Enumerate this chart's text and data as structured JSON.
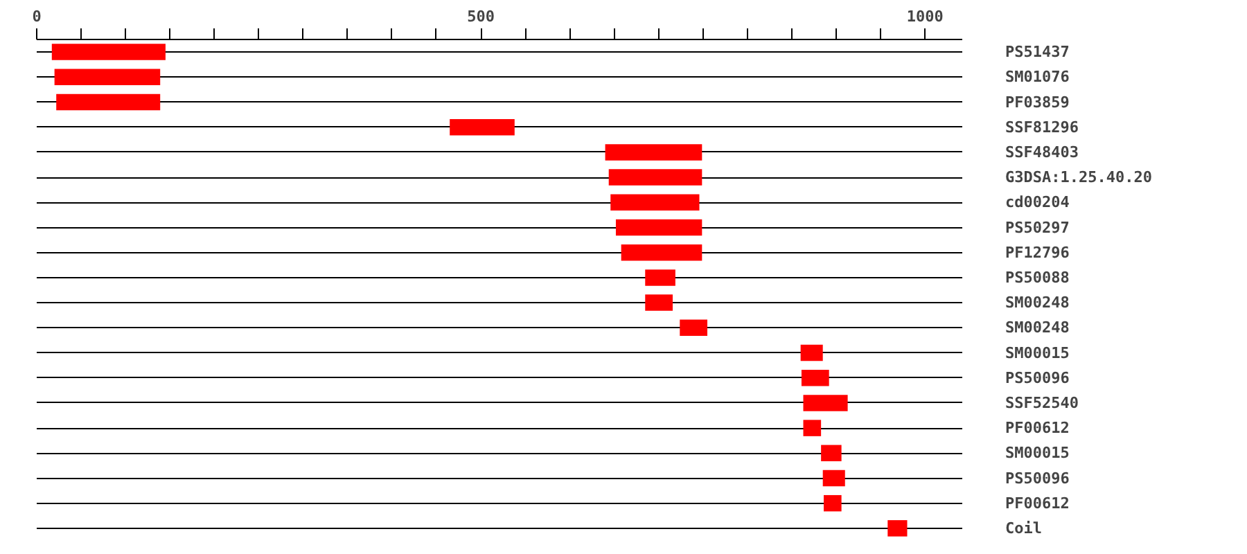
{
  "chart_data": {
    "type": "bar",
    "orientation": "horizontal",
    "categories": [
      "PS51437",
      "SM01076",
      "PF03859",
      "SSF81296",
      "SSF48403",
      "G3DSA:1.25.40.20",
      "cd00204",
      "PS50297",
      "PF12796",
      "PS50088",
      "SM00248",
      "SM00248",
      "SM00015",
      "PS50096",
      "SSF52540",
      "PF00612",
      "SM00015",
      "PS50096",
      "PF00612",
      "Coil"
    ],
    "base": [
      17,
      20,
      22,
      465,
      640,
      644,
      646,
      652,
      658,
      685,
      685,
      724,
      860,
      861,
      863,
      863,
      883,
      885,
      886,
      958
    ],
    "values": [
      128,
      119,
      117,
      73,
      109,
      105,
      100,
      97,
      91,
      34,
      31,
      31,
      25,
      31,
      50,
      20,
      23,
      25,
      20,
      22
    ],
    "color": "#ff0000",
    "xlim": [
      0,
      1042
    ],
    "xticks": [
      0,
      {
        "value": 50,
        "label": null
      },
      {
        "value": 100,
        "label": null
      },
      {
        "value": 150,
        "label": null
      },
      {
        "value": 200,
        "label": null
      },
      {
        "value": 250,
        "label": null
      },
      {
        "value": 300,
        "label": null
      },
      {
        "value": 350,
        "label": null
      },
      {
        "value": 400,
        "label": null
      },
      {
        "value": 450,
        "label": null
      },
      500,
      {
        "value": 550,
        "label": null
      },
      {
        "value": 600,
        "label": null
      },
      {
        "value": 650,
        "label": null
      },
      {
        "value": 700,
        "label": null
      },
      {
        "value": 750,
        "label": null
      },
      {
        "value": 800,
        "label": null
      },
      {
        "value": 850,
        "label": null
      },
      {
        "value": 900,
        "label": null
      },
      {
        "value": 950,
        "label": null
      },
      1000
    ],
    "grid": "y"
  }
}
